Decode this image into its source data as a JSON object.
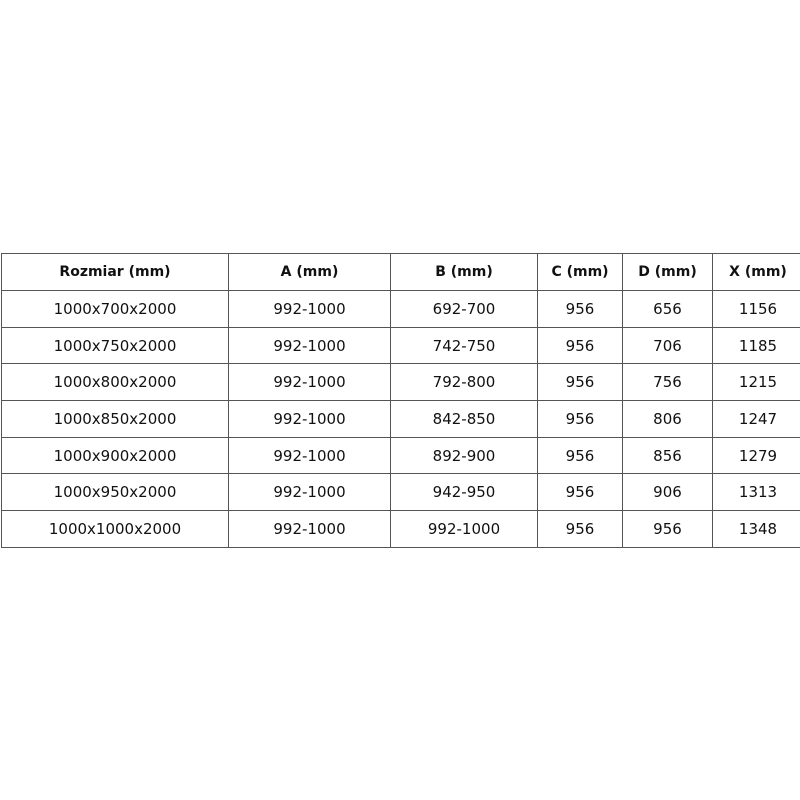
{
  "table": {
    "headers": [
      "Rozmiar (mm)",
      "A (mm)",
      "B (mm)",
      "C (mm)",
      "D (mm)",
      "X (mm)"
    ],
    "rows": [
      [
        "1000x700x2000",
        "992-1000",
        "692-700",
        "956",
        "656",
        "1156"
      ],
      [
        "1000x750x2000",
        "992-1000",
        "742-750",
        "956",
        "706",
        "1185"
      ],
      [
        "1000x800x2000",
        "992-1000",
        "792-800",
        "956",
        "756",
        "1215"
      ],
      [
        "1000x850x2000",
        "992-1000",
        "842-850",
        "956",
        "806",
        "1247"
      ],
      [
        "1000x900x2000",
        "992-1000",
        "892-900",
        "956",
        "856",
        "1279"
      ],
      [
        "1000x950x2000",
        "992-1000",
        "942-950",
        "956",
        "906",
        "1313"
      ],
      [
        "1000x1000x2000",
        "992-1000",
        "992-1000",
        "956",
        "956",
        "1348"
      ]
    ]
  }
}
